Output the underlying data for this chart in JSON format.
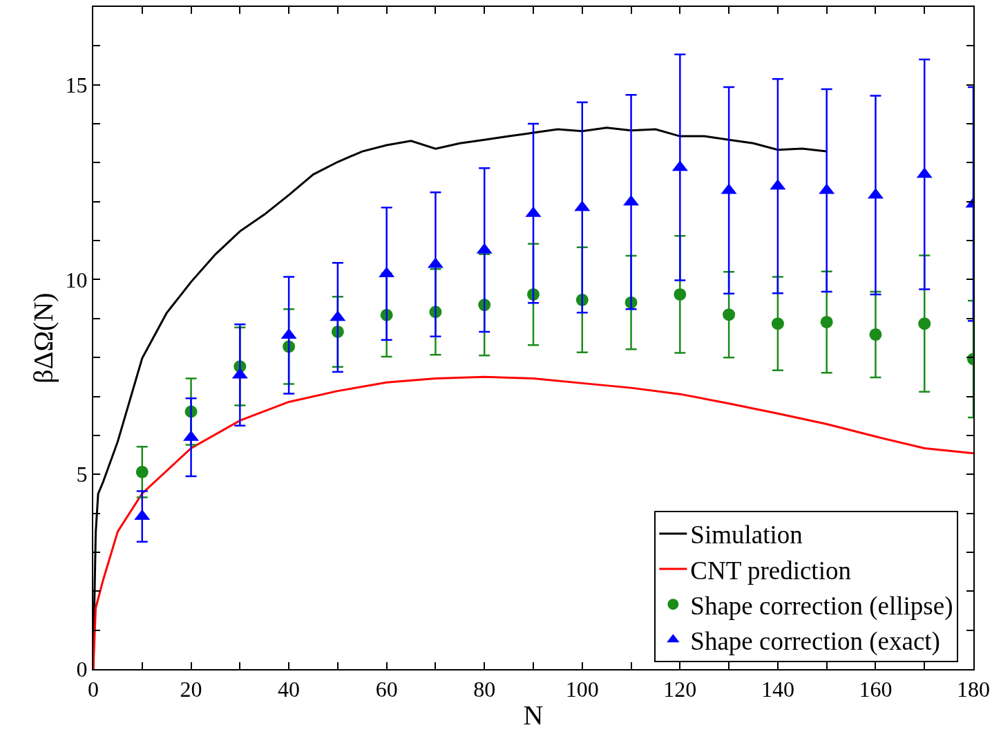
{
  "chart_data": {
    "type": "line",
    "xlabel": "N",
    "ylabel": "βΔΩ(N)",
    "xlim": [
      0,
      180
    ],
    "ylim": [
      0,
      17
    ],
    "xticks": [
      0,
      {
        "value": 10,
        "label": null
      },
      20,
      {
        "value": 30,
        "label": null
      },
      40,
      {
        "value": 50,
        "label": null
      },
      60,
      {
        "value": 70,
        "label": null
      },
      80,
      {
        "value": 90,
        "label": null
      },
      100,
      {
        "value": 110,
        "label": null
      },
      120,
      {
        "value": 130,
        "label": null
      },
      140,
      {
        "value": 150,
        "label": null
      },
      160,
      {
        "value": 170,
        "label": null
      },
      180
    ],
    "yticks": [
      0,
      {
        "value": 1,
        "label": null
      },
      {
        "value": 2,
        "label": null
      },
      {
        "value": 3,
        "label": null
      },
      {
        "value": 4,
        "label": null
      },
      5,
      {
        "value": 6,
        "label": null
      },
      {
        "value": 7,
        "label": null
      },
      {
        "value": 8,
        "label": null
      },
      {
        "value": 9,
        "label": null
      },
      10,
      {
        "value": 11,
        "label": null
      },
      {
        "value": 12,
        "label": null
      },
      {
        "value": 13,
        "label": null
      },
      {
        "value": 14,
        "label": null
      },
      15,
      {
        "value": 16,
        "label": null
      }
    ],
    "grid": false,
    "legend": "bottom right",
    "line_style": "solid",
    "series": [
      {
        "name": "Simulation",
        "color": "#000000",
        "marker": "none",
        "x": [
          0,
          0.2,
          0.5,
          1,
          2,
          5,
          10,
          15,
          20,
          25,
          30,
          35,
          40,
          45,
          50,
          55,
          60,
          65,
          70,
          75,
          80,
          85,
          90,
          95,
          100,
          105,
          110,
          115,
          120,
          125,
          130,
          135,
          140,
          145,
          150
        ],
        "values": [
          0,
          1.5,
          3.5,
          4.5,
          4.8,
          5.84,
          7.98,
          9.14,
          9.94,
          10.65,
          11.24,
          11.67,
          12.17,
          12.7,
          13.02,
          13.29,
          13.45,
          13.56,
          13.36,
          13.5,
          13.59,
          13.68,
          13.77,
          13.86,
          13.81,
          13.9,
          13.83,
          13.86,
          13.68,
          13.68,
          13.59,
          13.5,
          13.33,
          13.36,
          13.29
        ]
      },
      {
        "name": "CNT prediction",
        "color": "#ff0000",
        "marker": "none",
        "x": [
          0,
          0.5,
          2,
          5,
          10,
          20,
          30,
          40,
          50,
          60,
          70,
          80,
          90,
          100,
          110,
          120,
          130,
          140,
          150,
          160,
          170,
          180
        ],
        "values": [
          0,
          1.57,
          2.28,
          3.53,
          4.51,
          5.67,
          6.38,
          6.86,
          7.14,
          7.36,
          7.46,
          7.5,
          7.46,
          7.34,
          7.22,
          7.06,
          6.82,
          6.56,
          6.29,
          5.97,
          5.67,
          5.54
        ]
      },
      {
        "name": "Shape correction (ellipse)",
        "type": "scatter",
        "color": "#1a8c1a",
        "marker": "circle",
        "x": [
          10,
          20,
          30,
          40,
          50,
          60,
          70,
          80,
          90,
          100,
          110,
          120,
          130,
          140,
          150,
          160,
          170,
          180
        ],
        "values": [
          5.06,
          6.61,
          7.77,
          8.28,
          8.66,
          9.09,
          9.17,
          9.35,
          9.62,
          9.48,
          9.41,
          9.62,
          9.1,
          8.87,
          8.91,
          8.59,
          8.87,
          7.96
        ],
        "errors": [
          0.65,
          0.85,
          1.0,
          0.96,
          0.9,
          1.07,
          1.1,
          1.3,
          1.3,
          1.35,
          1.2,
          1.5,
          1.1,
          1.2,
          1.3,
          1.1,
          1.75,
          1.5
        ]
      },
      {
        "name": "Shape correction (exact)",
        "type": "scatter",
        "color": "#0000ff",
        "marker": "triangle",
        "x": [
          10,
          20,
          30,
          40,
          50,
          60,
          70,
          80,
          90,
          100,
          110,
          120,
          130,
          140,
          150,
          160,
          170,
          180
        ],
        "values": [
          3.92,
          5.95,
          7.55,
          8.57,
          9.03,
          10.15,
          10.39,
          10.76,
          11.7,
          11.85,
          11.99,
          12.88,
          12.29,
          12.4,
          12.29,
          12.17,
          12.7,
          11.94
        ],
        "errors": [
          0.65,
          1.0,
          1.3,
          1.5,
          1.4,
          1.7,
          1.85,
          2.1,
          2.3,
          2.7,
          2.75,
          2.9,
          2.65,
          2.75,
          2.6,
          2.55,
          2.95,
          3.0
        ]
      }
    ]
  }
}
